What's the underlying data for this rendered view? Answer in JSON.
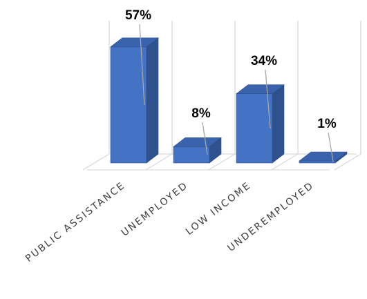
{
  "chart_data": {
    "type": "bar",
    "categories": [
      "PUBLIC ASSISTANCE",
      "UNEMPLOYED",
      "LOW INCOME",
      "UNDEREMPLOYED"
    ],
    "values": [
      57,
      8,
      34,
      1
    ],
    "data_labels": [
      "57%",
      "8%",
      "34%",
      "1%"
    ],
    "title": "",
    "xlabel": "",
    "ylabel": "",
    "ylim": [
      0,
      100
    ],
    "grid": true,
    "legend": "none",
    "style": "3d-column",
    "colors": {
      "front": "#4472c4",
      "side": "#2f528f",
      "top": "#3a63ad",
      "edge": "#2e4f8a",
      "grid": "#d9d9d9",
      "leader": "#a6a6a6"
    }
  }
}
